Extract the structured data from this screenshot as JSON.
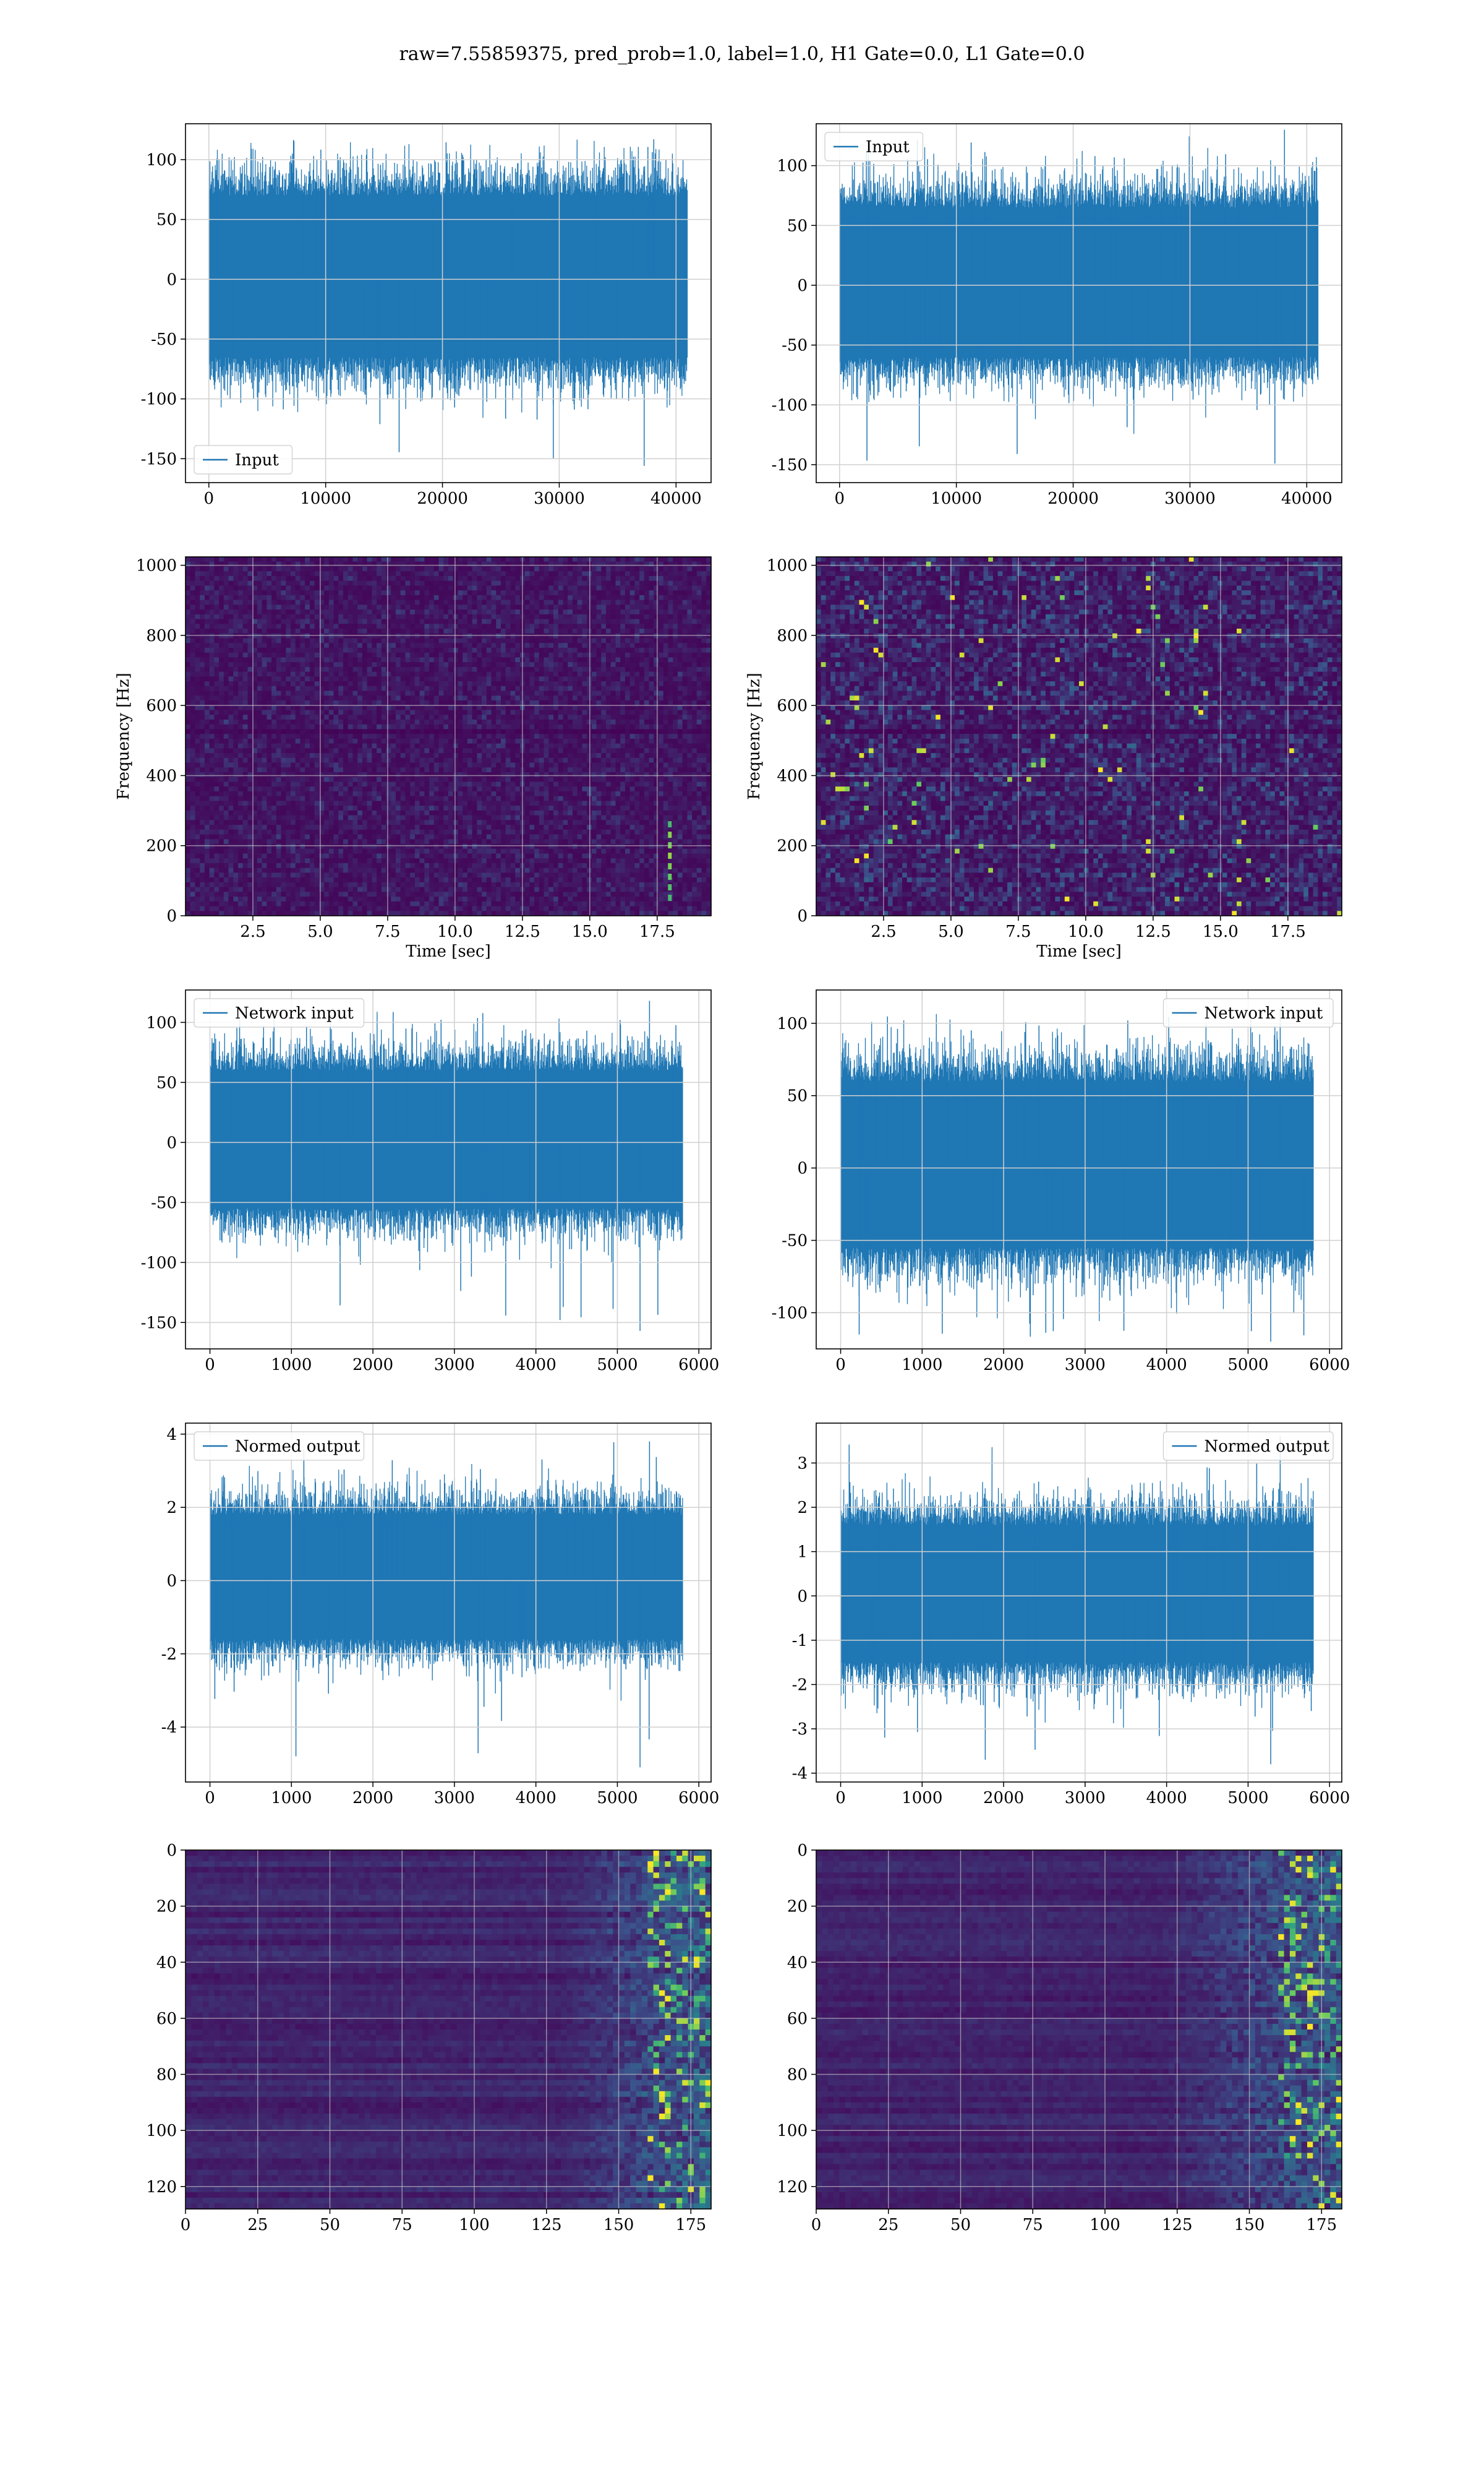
{
  "figure_title": "raw=7.55859375, pred_prob=1.0, label=1.0, H1 Gate=0.0, L1 Gate=0.0",
  "colors": {
    "line": "#1f77b4",
    "grid": "#d0d0d0",
    "viridis_dark": "#440154"
  },
  "chart_data": [
    {
      "id": "input_h1",
      "type": "line",
      "title": "",
      "xlabel": "",
      "ylabel": "",
      "legend": {
        "label": "Input",
        "loc": "lower-left"
      },
      "xlim": [
        -2000,
        43000
      ],
      "ylim": [
        -170,
        130
      ],
      "xticks": [
        0,
        10000,
        20000,
        30000,
        40000
      ],
      "yticks": [
        -150,
        -100,
        -50,
        0,
        50,
        100
      ],
      "series": [
        {
          "n": 41000,
          "x_range": [
            0,
            40960
          ],
          "envelope": [
            -65,
            70
          ],
          "extremes": [
            -156,
            117
          ]
        }
      ]
    },
    {
      "id": "input_l1",
      "type": "line",
      "title": "",
      "xlabel": "",
      "ylabel": "",
      "legend": {
        "label": "Input",
        "loc": "upper-left"
      },
      "xlim": [
        -2000,
        43000
      ],
      "ylim": [
        -165,
        135
      ],
      "xticks": [
        0,
        10000,
        20000,
        30000,
        40000
      ],
      "yticks": [
        -150,
        -100,
        -50,
        0,
        50,
        100
      ],
      "series": [
        {
          "n": 41000,
          "x_range": [
            0,
            40960
          ],
          "envelope": [
            -60,
            65
          ],
          "extremes": [
            -149,
            130
          ]
        }
      ]
    },
    {
      "id": "spec_h1",
      "type": "heatmap",
      "title": "",
      "xlabel": "Time [sec]",
      "ylabel": "Frequency [Hz]",
      "xlim": [
        0,
        19.5
      ],
      "ylim": [
        0,
        1024
      ],
      "xticks": [
        2.5,
        5.0,
        7.5,
        10.0,
        12.5,
        15.0,
        17.5
      ],
      "yticks": [
        0,
        200,
        400,
        600,
        800,
        1000
      ],
      "colormap": "viridis",
      "intensity": "low"
    },
    {
      "id": "spec_l1",
      "type": "heatmap",
      "title": "",
      "xlabel": "Time [sec]",
      "ylabel": "Frequency [Hz]",
      "xlim": [
        0,
        19.5
      ],
      "ylim": [
        0,
        1024
      ],
      "xticks": [
        2.5,
        5.0,
        7.5,
        10.0,
        12.5,
        15.0,
        17.5
      ],
      "yticks": [
        0,
        200,
        400,
        600,
        800,
        1000
      ],
      "colormap": "viridis",
      "intensity": "medium"
    },
    {
      "id": "net_h1",
      "type": "line",
      "title": "",
      "xlabel": "",
      "ylabel": "",
      "legend": {
        "label": "Network input",
        "loc": "upper-left"
      },
      "xlim": [
        -300,
        6150
      ],
      "ylim": [
        -172,
        127
      ],
      "xticks": [
        0,
        1000,
        2000,
        3000,
        4000,
        5000,
        6000
      ],
      "yticks": [
        -150,
        -100,
        -50,
        0,
        50,
        100
      ],
      "series": [
        {
          "n": 5800,
          "x_range": [
            0,
            5800
          ],
          "envelope": [
            -55,
            60
          ],
          "extremes": [
            -157,
            118
          ]
        }
      ]
    },
    {
      "id": "net_l1",
      "type": "line",
      "title": "",
      "xlabel": "",
      "ylabel": "",
      "legend": {
        "label": "Network input",
        "loc": "upper-right"
      },
      "xlim": [
        -300,
        6150
      ],
      "ylim": [
        -125,
        123
      ],
      "xticks": [
        0,
        1000,
        2000,
        3000,
        4000,
        5000,
        6000
      ],
      "yticks": [
        -100,
        -50,
        0,
        50,
        100
      ],
      "series": [
        {
          "n": 5800,
          "x_range": [
            0,
            5800
          ],
          "envelope": [
            -55,
            60
          ],
          "extremes": [
            -120,
            110
          ]
        }
      ]
    },
    {
      "id": "norm_h1",
      "type": "line",
      "title": "",
      "xlabel": "",
      "ylabel": "",
      "legend": {
        "label": "Normed output",
        "loc": "upper-left"
      },
      "xlim": [
        -300,
        6150
      ],
      "ylim": [
        -5.5,
        4.3
      ],
      "xticks": [
        0,
        1000,
        2000,
        3000,
        4000,
        5000,
        6000
      ],
      "yticks": [
        -4,
        -2,
        0,
        2,
        4
      ],
      "series": [
        {
          "n": 5800,
          "x_range": [
            0,
            5800
          ],
          "envelope": [
            -1.6,
            1.8
          ],
          "extremes": [
            -5.1,
            3.8
          ]
        }
      ]
    },
    {
      "id": "norm_l1",
      "type": "line",
      "title": "",
      "xlabel": "",
      "ylabel": "",
      "legend": {
        "label": "Normed output",
        "loc": "upper-right"
      },
      "xlim": [
        -300,
        6150
      ],
      "ylim": [
        -4.2,
        3.9
      ],
      "xticks": [
        0,
        1000,
        2000,
        3000,
        4000,
        5000,
        6000
      ],
      "yticks": [
        -4,
        -3,
        -2,
        -1,
        0,
        1,
        2,
        3
      ],
      "series": [
        {
          "n": 5800,
          "x_range": [
            0,
            5800
          ],
          "envelope": [
            -1.5,
            1.6
          ],
          "extremes": [
            -3.8,
            3.6
          ]
        }
      ]
    },
    {
      "id": "feat_h1",
      "type": "heatmap",
      "title": "",
      "xlabel": "",
      "ylabel": "",
      "xlim": [
        0,
        182
      ],
      "ylim": [
        128,
        0
      ],
      "xticks": [
        0,
        25,
        50,
        75,
        100,
        125,
        150,
        175
      ],
      "yticks": [
        0,
        20,
        40,
        60,
        80,
        100,
        120
      ],
      "colormap": "viridis",
      "bright_region_x": [
        150,
        182
      ]
    },
    {
      "id": "feat_l1",
      "type": "heatmap",
      "title": "",
      "xlabel": "",
      "ylabel": "",
      "xlim": [
        0,
        182
      ],
      "ylim": [
        128,
        0
      ],
      "xticks": [
        0,
        25,
        50,
        75,
        100,
        125,
        150,
        175
      ],
      "yticks": [
        0,
        20,
        40,
        60,
        80,
        100,
        120
      ],
      "colormap": "viridis",
      "bright_region_x": [
        140,
        182
      ]
    }
  ]
}
